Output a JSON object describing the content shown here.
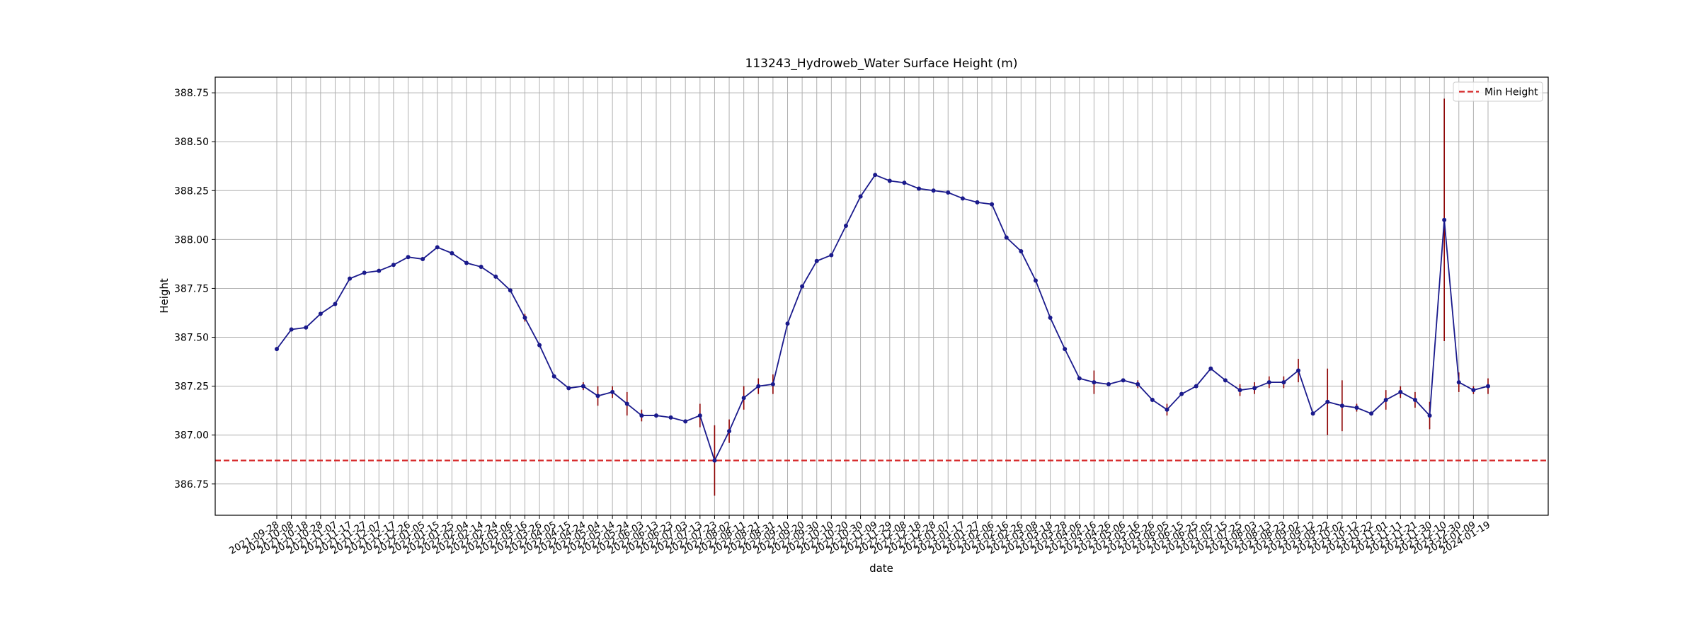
{
  "chart_data": {
    "type": "line",
    "title": "113243_Hydroweb_Water Surface Height (m)",
    "x_label": "date",
    "y_label": "Height",
    "categories": [
      "2021-09-28",
      "2021-10-08",
      "2021-10-18",
      "2021-10-28",
      "2021-11-07",
      "2021-11-17",
      "2021-11-27",
      "2021-12-07",
      "2021-12-17",
      "2021-12-26",
      "2022-01-05",
      "2022-01-15",
      "2022-01-25",
      "2022-02-04",
      "2022-02-14",
      "2022-02-24",
      "2022-03-06",
      "2022-03-16",
      "2022-03-26",
      "2022-04-05",
      "2022-04-15",
      "2022-04-24",
      "2022-05-04",
      "2022-05-14",
      "2022-05-24",
      "2022-06-03",
      "2022-06-13",
      "2022-06-23",
      "2022-07-03",
      "2022-07-13",
      "2022-07-23",
      "2022-08-02",
      "2022-08-11",
      "2022-08-21",
      "2022-08-31",
      "2022-09-10",
      "2022-09-20",
      "2022-09-30",
      "2022-10-10",
      "2022-10-20",
      "2022-10-30",
      "2022-11-09",
      "2022-11-29",
      "2022-12-08",
      "2022-12-18",
      "2022-12-28",
      "2023-01-07",
      "2023-01-17",
      "2023-01-27",
      "2023-02-06",
      "2023-02-16",
      "2023-02-26",
      "2023-03-08",
      "2023-03-18",
      "2023-03-28",
      "2023-04-06",
      "2023-04-16",
      "2023-04-26",
      "2023-05-06",
      "2023-05-16",
      "2023-05-26",
      "2023-06-05",
      "2023-06-15",
      "2023-06-25",
      "2023-07-05",
      "2023-07-15",
      "2023-07-25",
      "2023-08-03",
      "2023-08-13",
      "2023-08-23",
      "2023-09-02",
      "2023-09-12",
      "2023-09-22",
      "2023-10-02",
      "2023-10-12",
      "2023-10-22",
      "2023-11-01",
      "2023-11-11",
      "2023-11-21",
      "2023-11-30",
      "2023-12-10",
      "2023-12-30",
      "2024-01-09",
      "2024-01-19"
    ],
    "series": [
      {
        "color": "#1a1a8c",
        "error_color": "#8b0000",
        "values": [
          387.44,
          387.54,
          387.55,
          387.62,
          387.67,
          387.8,
          387.83,
          387.84,
          387.87,
          387.91,
          387.9,
          387.96,
          387.93,
          387.88,
          387.86,
          387.81,
          387.74,
          387.6,
          387.46,
          387.3,
          387.24,
          387.25,
          387.2,
          387.22,
          387.16,
          387.1,
          387.1,
          387.09,
          387.07,
          387.1,
          386.87,
          387.02,
          387.19,
          387.25,
          387.26,
          387.57,
          387.76,
          387.89,
          387.92,
          388.07,
          388.22,
          388.33,
          388.3,
          388.29,
          388.26,
          388.25,
          388.24,
          388.21,
          388.19,
          388.18,
          388.01,
          387.94,
          387.79,
          387.6,
          387.44,
          387.29,
          387.27,
          387.26,
          387.28,
          387.26,
          387.18,
          387.13,
          387.21,
          387.25,
          387.34,
          387.28,
          387.23,
          387.24,
          387.27,
          387.27,
          387.33,
          387.11,
          387.17,
          387.15,
          387.14,
          387.11,
          387.18,
          387.22,
          387.18,
          387.1,
          388.1,
          387.27,
          387.23,
          387.25
        ],
        "errors": [
          0.01,
          0.01,
          0.01,
          0.01,
          0.01,
          0.01,
          0.01,
          0.01,
          0.01,
          0.01,
          0.01,
          0.01,
          0.01,
          0.01,
          0.01,
          0.01,
          0.01,
          0.02,
          0.01,
          0.01,
          0.01,
          0.02,
          0.05,
          0.03,
          0.06,
          0.03,
          0.01,
          0.01,
          0.01,
          0.06,
          0.18,
          0.06,
          0.06,
          0.04,
          0.05,
          0.01,
          0.01,
          0.01,
          0.01,
          0.01,
          0.01,
          0.01,
          0.01,
          0.01,
          0.01,
          0.01,
          0.01,
          0.01,
          0.01,
          0.01,
          0.01,
          0.01,
          0.01,
          0.01,
          0.01,
          0.01,
          0.06,
          0.01,
          0.01,
          0.02,
          0.01,
          0.03,
          0.01,
          0.01,
          0.01,
          0.01,
          0.03,
          0.03,
          0.03,
          0.03,
          0.06,
          0.01,
          0.17,
          0.13,
          0.02,
          0.01,
          0.05,
          0.03,
          0.04,
          0.07,
          0.62,
          0.05,
          0.02,
          0.04
        ]
      }
    ],
    "hline": {
      "name": "Min Height",
      "value": 386.87,
      "color": "#d62728"
    },
    "ylim": [
      386.59,
      388.83
    ],
    "yticks": [
      386.75,
      {
        "value": 387,
        "label": "387.00"
      },
      387.25,
      {
        "value": 387.5,
        "label": "387.50"
      },
      387.75,
      {
        "value": 388,
        "label": "388.00"
      },
      388.25,
      {
        "value": 388.5,
        "label": "388.50"
      },
      388.75
    ],
    "grid": true,
    "legend": "upper right"
  }
}
